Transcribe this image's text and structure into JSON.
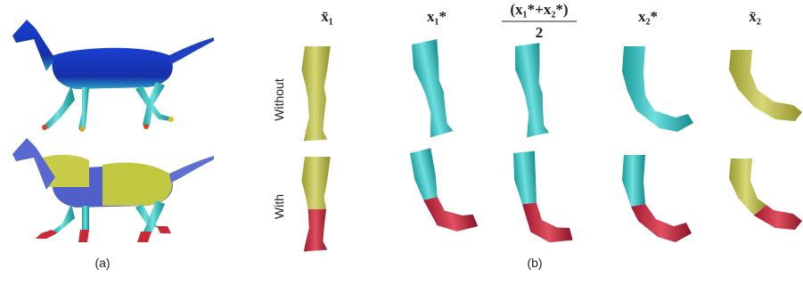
{
  "figure": {
    "panel_a": {
      "caption": "(a)"
    },
    "panel_b": {
      "caption": "(b)",
      "columns": [
        "x̄₁",
        "x₁*",
        {
          "numerator": "(x₁*+x₂*)",
          "denominator": "2"
        },
        "x₂*",
        "x̄₂"
      ],
      "rows": [
        "Without",
        "With"
      ]
    }
  }
}
